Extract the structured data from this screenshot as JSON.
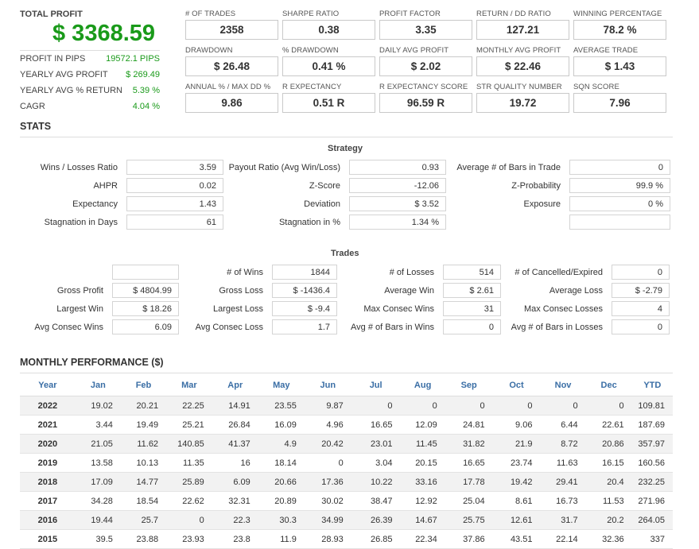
{
  "summary": {
    "total_profit_label": "TOTAL PROFIT",
    "total_profit_value": "$ 3368.59",
    "rows": [
      {
        "label": "PROFIT IN PIPS",
        "value": "19572.1 PIPS"
      },
      {
        "label": "YEARLY AVG PROFIT",
        "value": "$ 269.49"
      },
      {
        "label": "YEARLY AVG % RETURN",
        "value": "5.39 %"
      },
      {
        "label": "CAGR",
        "value": "4.04 %"
      }
    ]
  },
  "metrics": [
    {
      "label": "# OF TRADES",
      "value": "2358"
    },
    {
      "label": "SHARPE RATIO",
      "value": "0.38"
    },
    {
      "label": "PROFIT FACTOR",
      "value": "3.35"
    },
    {
      "label": "RETURN / DD RATIO",
      "value": "127.21"
    },
    {
      "label": "WINNING PERCENTAGE",
      "value": "78.2 %"
    },
    {
      "label": "DRAWDOWN",
      "value": "$ 26.48"
    },
    {
      "label": "% DRAWDOWN",
      "value": "0.41 %"
    },
    {
      "label": "DAILY AVG PROFIT",
      "value": "$ 2.02"
    },
    {
      "label": "MONTHLY AVG PROFIT",
      "value": "$ 22.46"
    },
    {
      "label": "AVERAGE TRADE",
      "value": "$ 1.43"
    },
    {
      "label": "ANNUAL % / MAX DD %",
      "value": "9.86"
    },
    {
      "label": "R EXPECTANCY",
      "value": "0.51 R"
    },
    {
      "label": "R EXPECTANCY SCORE",
      "value": "96.59 R"
    },
    {
      "label": "STR QUALITY NUMBER",
      "value": "19.72"
    },
    {
      "label": "SQN SCORE",
      "value": "7.96"
    }
  ],
  "stats": {
    "heading": "STATS",
    "strategy": {
      "title": "Strategy",
      "rows": [
        [
          {
            "label": "Wins / Losses Ratio",
            "value": "3.59"
          },
          {
            "label": "Payout Ratio (Avg Win/Loss)",
            "value": "0.93"
          },
          {
            "label": "Average # of Bars in Trade",
            "value": "0"
          }
        ],
        [
          {
            "label": "AHPR",
            "value": "0.02"
          },
          {
            "label": "Z-Score",
            "value": "-12.06"
          },
          {
            "label": "Z-Probability",
            "value": "99.9 %"
          }
        ],
        [
          {
            "label": "Expectancy",
            "value": "1.43"
          },
          {
            "label": "Deviation",
            "value": "$ 3.52"
          },
          {
            "label": "Exposure",
            "value": "0 %"
          }
        ],
        [
          {
            "label": "Stagnation in Days",
            "value": "61"
          },
          {
            "label": "Stagnation in %",
            "value": "1.34 %"
          },
          {
            "label": "",
            "value": ""
          }
        ]
      ]
    },
    "trades": {
      "title": "Trades",
      "rows": [
        [
          {
            "label": "",
            "value": ""
          },
          {
            "label": "# of Wins",
            "value": "1844"
          },
          {
            "label": "# of Losses",
            "value": "514"
          },
          {
            "label": "# of Cancelled/Expired",
            "value": "0"
          }
        ],
        [
          {
            "label": "Gross Profit",
            "value": "$ 4804.99"
          },
          {
            "label": "Gross Loss",
            "value": "$ -1436.4"
          },
          {
            "label": "Average Win",
            "value": "$ 2.61"
          },
          {
            "label": "Average Loss",
            "value": "$ -2.79"
          }
        ],
        [
          {
            "label": "Largest Win",
            "value": "$ 18.26"
          },
          {
            "label": "Largest Loss",
            "value": "$ -9.4"
          },
          {
            "label": "Max Consec Wins",
            "value": "31"
          },
          {
            "label": "Max Consec Losses",
            "value": "4"
          }
        ],
        [
          {
            "label": "Avg Consec Wins",
            "value": "6.09"
          },
          {
            "label": "Avg Consec Loss",
            "value": "1.7"
          },
          {
            "label": "Avg # of Bars in Wins",
            "value": "0"
          },
          {
            "label": "Avg # of Bars in Losses",
            "value": "0"
          }
        ]
      ]
    }
  },
  "monthly": {
    "heading": "MONTHLY PERFORMANCE ($)",
    "columns": [
      "Year",
      "Jan",
      "Feb",
      "Mar",
      "Apr",
      "May",
      "Jun",
      "Jul",
      "Aug",
      "Sep",
      "Oct",
      "Nov",
      "Dec",
      "YTD"
    ],
    "rows": [
      [
        "2022",
        "19.02",
        "20.21",
        "22.25",
        "14.91",
        "23.55",
        "9.87",
        "0",
        "0",
        "0",
        "0",
        "0",
        "0",
        "109.81"
      ],
      [
        "2021",
        "3.44",
        "19.49",
        "25.21",
        "26.84",
        "16.09",
        "4.96",
        "16.65",
        "12.09",
        "24.81",
        "9.06",
        "6.44",
        "22.61",
        "187.69"
      ],
      [
        "2020",
        "21.05",
        "11.62",
        "140.85",
        "41.37",
        "4.9",
        "20.42",
        "23.01",
        "11.45",
        "31.82",
        "21.9",
        "8.72",
        "20.86",
        "357.97"
      ],
      [
        "2019",
        "13.58",
        "10.13",
        "11.35",
        "16",
        "18.14",
        "0",
        "3.04",
        "20.15",
        "16.65",
        "23.74",
        "11.63",
        "16.15",
        "160.56"
      ],
      [
        "2018",
        "17.09",
        "14.77",
        "25.89",
        "6.09",
        "20.66",
        "17.36",
        "10.22",
        "33.16",
        "17.78",
        "19.42",
        "29.41",
        "20.4",
        "232.25"
      ],
      [
        "2017",
        "34.28",
        "18.54",
        "22.62",
        "32.31",
        "20.89",
        "30.02",
        "38.47",
        "12.92",
        "25.04",
        "8.61",
        "16.73",
        "11.53",
        "271.96"
      ],
      [
        "2016",
        "19.44",
        "25.7",
        "0",
        "22.3",
        "30.3",
        "34.99",
        "26.39",
        "14.67",
        "25.75",
        "12.61",
        "31.7",
        "20.2",
        "264.05"
      ],
      [
        "2015",
        "39.5",
        "23.88",
        "23.93",
        "23.8",
        "11.9",
        "28.93",
        "26.85",
        "22.34",
        "37.86",
        "43.51",
        "22.14",
        "32.36",
        "337"
      ]
    ]
  }
}
